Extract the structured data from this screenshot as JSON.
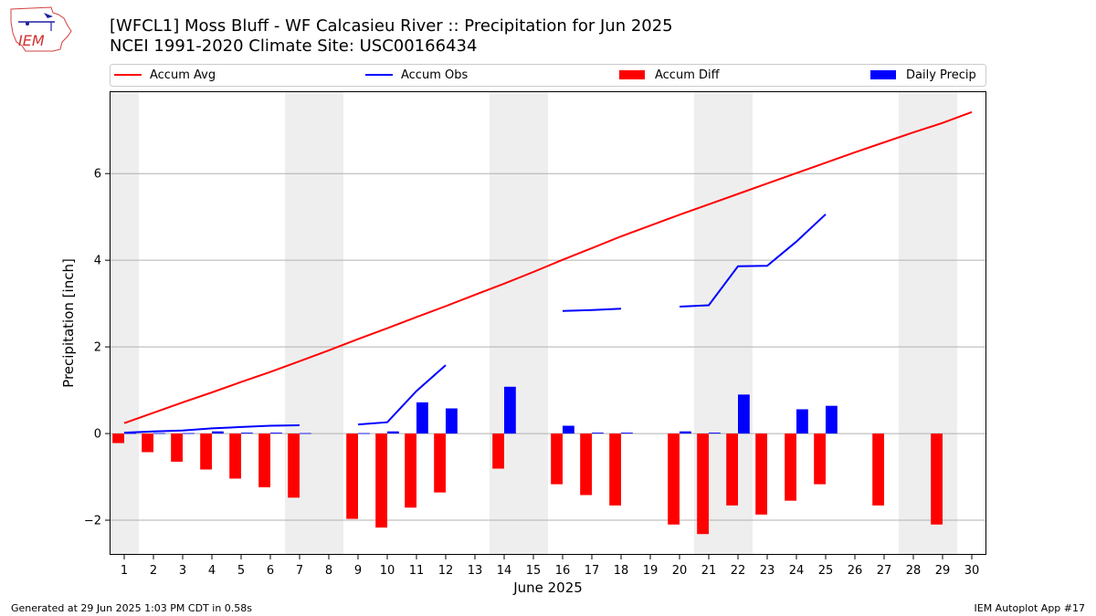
{
  "title_line1": "[WFCL1] Moss Bluff - WF Calcasieu River :: Precipitation for Jun 2025",
  "title_line2": "NCEI 1991-2020 Climate Site: USC00166434",
  "logo_text": "IEM",
  "footer_left": "Generated at 29 Jun 2025 1:03 PM CDT in 0.58s",
  "footer_right": "IEM Autoplot App #17",
  "colors": {
    "avg": "#ff0000",
    "obs": "#0000ff",
    "diff": "#ff0000",
    "daily": "#0000ff",
    "weekend": "#eeeeee",
    "grid": "#b0b0b0"
  },
  "chart_data": {
    "type": "bar",
    "xlabel": "June 2025",
    "ylabel": "Precipitation [inch]",
    "ylim": [
      -2.8,
      7.9
    ],
    "xlim": [
      0.5,
      30.5
    ],
    "yticks": [
      -2,
      0,
      2,
      4,
      6
    ],
    "x": [
      1,
      2,
      3,
      4,
      5,
      6,
      7,
      8,
      9,
      10,
      11,
      12,
      13,
      14,
      15,
      16,
      17,
      18,
      19,
      20,
      21,
      22,
      23,
      24,
      25,
      26,
      27,
      28,
      29,
      30
    ],
    "shaded_days": [
      1,
      7,
      8,
      14,
      15,
      21,
      22,
      28,
      29
    ],
    "grid": true,
    "legend": {
      "placement": "top",
      "entries": [
        "Accum Avg",
        "Accum Obs",
        "Accum Diff",
        "Daily Precip"
      ]
    },
    "series": [
      {
        "name": "Accum Avg",
        "type": "line",
        "values": [
          0.24,
          0.48,
          0.72,
          0.95,
          1.19,
          1.42,
          1.67,
          1.92,
          2.18,
          2.43,
          2.69,
          2.94,
          3.2,
          3.46,
          3.73,
          4.01,
          4.28,
          4.55,
          4.8,
          5.05,
          5.29,
          5.53,
          5.77,
          6.01,
          6.25,
          6.49,
          6.72,
          6.95,
          7.17,
          7.42
        ]
      },
      {
        "name": "Accum Obs",
        "type": "line",
        "values": [
          0.02,
          0.05,
          0.07,
          0.12,
          0.15,
          0.18,
          0.19,
          null,
          0.21,
          0.26,
          0.98,
          1.58,
          null,
          null,
          null,
          2.83,
          2.85,
          2.88,
          null,
          2.93,
          2.96,
          3.86,
          3.87,
          4.43,
          5.06,
          null,
          null,
          null,
          null,
          null
        ]
      },
      {
        "name": "Accum Diff",
        "type": "bar",
        "values": [
          -0.22,
          -0.43,
          -0.65,
          -0.83,
          -1.04,
          -1.24,
          -1.48,
          null,
          -1.97,
          -2.17,
          -1.71,
          -1.36,
          null,
          -0.81,
          null,
          -1.17,
          -1.42,
          -1.66,
          null,
          -2.1,
          -2.32,
          -1.66,
          -1.87,
          -1.55,
          -1.17,
          null,
          -1.66,
          null,
          -2.1,
          null
        ]
      },
      {
        "name": "Daily Precip",
        "type": "bar",
        "values": [
          0.01,
          0.01,
          0.01,
          0.05,
          0.02,
          0.02,
          0.01,
          null,
          0.01,
          0.05,
          0.72,
          0.58,
          null,
          1.08,
          null,
          0.18,
          0.02,
          0.02,
          null,
          0.05,
          0.02,
          0.9,
          null,
          0.56,
          0.64,
          null,
          null,
          null,
          null,
          null
        ]
      }
    ]
  }
}
